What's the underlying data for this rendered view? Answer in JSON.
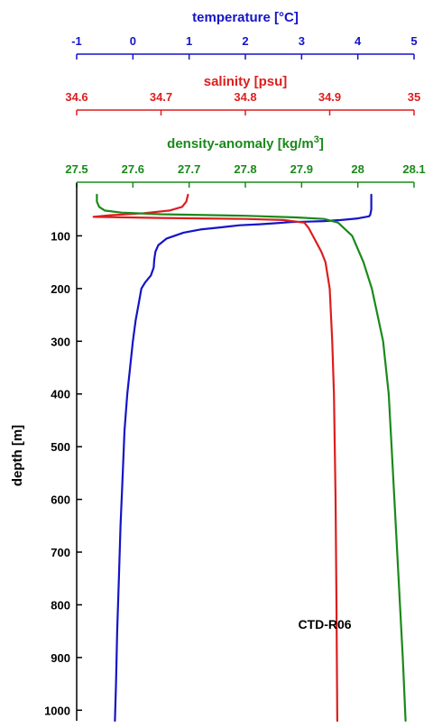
{
  "chart_data": {
    "type": "line",
    "annotation": "CTD-R06",
    "y_axis": {
      "label": "depth [m]",
      "range": [
        0,
        1020
      ],
      "inverted": true,
      "ticks": [
        100,
        200,
        300,
        400,
        500,
        600,
        700,
        800,
        900,
        1000
      ]
    },
    "x_axes": [
      {
        "key": "temperature",
        "title_prefix": "temperature [",
        "title_unit": "°C",
        "title_suffix": "]",
        "color": "#1414c8",
        "range": [
          -1,
          5
        ],
        "ticks": [
          -1,
          0,
          1,
          2,
          3,
          4,
          5
        ]
      },
      {
        "key": "salinity",
        "title": "salinity [psu]",
        "color": "#dc1e1e",
        "range": [
          34.6,
          35.0
        ],
        "ticks": [
          34.6,
          34.7,
          34.8,
          34.9,
          35
        ]
      },
      {
        "key": "density",
        "title_prefix": "density-anomaly [kg/m",
        "title_sup": "3",
        "title_suffix": "]",
        "color": "#1a8a1a",
        "range": [
          27.5,
          28.1
        ],
        "ticks": [
          27.5,
          27.6,
          27.7,
          27.8,
          27.9,
          28,
          28.1
        ]
      }
    ],
    "series": [
      {
        "axis": "temperature",
        "color": "#1414c8",
        "points": [
          [
            4.24,
            22
          ],
          [
            4.24,
            30
          ],
          [
            4.24,
            50
          ],
          [
            4.22,
            60
          ],
          [
            4.2,
            63
          ],
          [
            4.0,
            67
          ],
          [
            3.7,
            70
          ],
          [
            3.4,
            72
          ],
          [
            3.1,
            73
          ],
          [
            2.8,
            74
          ],
          [
            2.55,
            76
          ],
          [
            2.25,
            78
          ],
          [
            1.9,
            80
          ],
          [
            1.55,
            84
          ],
          [
            1.2,
            88
          ],
          [
            0.9,
            94
          ],
          [
            0.6,
            105
          ],
          [
            0.45,
            118
          ],
          [
            0.4,
            130
          ],
          [
            0.38,
            145
          ],
          [
            0.37,
            160
          ],
          [
            0.32,
            175
          ],
          [
            0.22,
            188
          ],
          [
            0.15,
            200
          ],
          [
            0.1,
            230
          ],
          [
            0.05,
            260
          ],
          [
            0.0,
            300
          ],
          [
            -0.05,
            350
          ],
          [
            -0.1,
            400
          ],
          [
            -0.15,
            470
          ],
          [
            -0.18,
            550
          ],
          [
            -0.22,
            650
          ],
          [
            -0.25,
            750
          ],
          [
            -0.28,
            850
          ],
          [
            -0.3,
            950
          ],
          [
            -0.32,
            1020
          ]
        ]
      },
      {
        "axis": "salinity",
        "color": "#dc1e1e",
        "points": [
          [
            34.732,
            22
          ],
          [
            34.73,
            35
          ],
          [
            34.725,
            45
          ],
          [
            34.71,
            52
          ],
          [
            34.68,
            57
          ],
          [
            34.64,
            61
          ],
          [
            34.62,
            64
          ],
          [
            34.7,
            66
          ],
          [
            34.8,
            68
          ],
          [
            34.845,
            70
          ],
          [
            34.87,
            75
          ],
          [
            34.875,
            85
          ],
          [
            34.88,
            100
          ],
          [
            34.885,
            115
          ],
          [
            34.89,
            130
          ],
          [
            34.895,
            150
          ],
          [
            34.9,
            200
          ],
          [
            34.903,
            300
          ],
          [
            34.905,
            400
          ],
          [
            34.906,
            500
          ],
          [
            34.907,
            600
          ],
          [
            34.908,
            800
          ],
          [
            34.909,
            1020
          ]
        ]
      },
      {
        "axis": "density",
        "color": "#1a8a1a",
        "points": [
          [
            27.536,
            22
          ],
          [
            27.536,
            35
          ],
          [
            27.54,
            45
          ],
          [
            27.55,
            52
          ],
          [
            27.58,
            56
          ],
          [
            27.65,
            59
          ],
          [
            27.8,
            62
          ],
          [
            27.89,
            65
          ],
          [
            27.94,
            68
          ],
          [
            27.965,
            75
          ],
          [
            27.99,
            100
          ],
          [
            28.01,
            150
          ],
          [
            28.025,
            200
          ],
          [
            28.035,
            250
          ],
          [
            28.045,
            300
          ],
          [
            28.055,
            400
          ],
          [
            28.06,
            500
          ],
          [
            28.065,
            600
          ],
          [
            28.07,
            700
          ],
          [
            28.075,
            800
          ],
          [
            28.08,
            900
          ],
          [
            28.085,
            1020
          ]
        ]
      }
    ]
  }
}
